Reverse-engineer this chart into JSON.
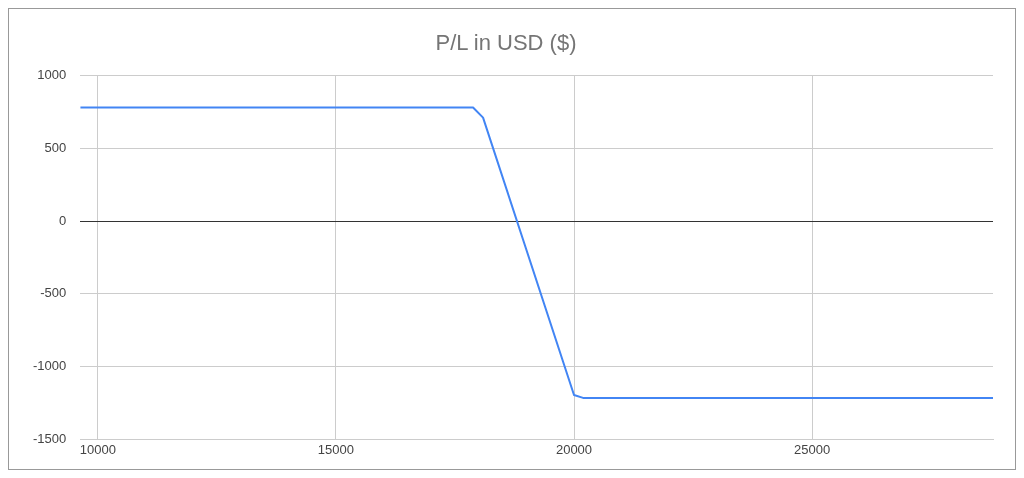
{
  "chart_data": {
    "type": "line",
    "title": "P/L in USD ($)",
    "x": [
      9630,
      17880,
      18090,
      20000,
      20190,
      28800
    ],
    "series": [
      {
        "color": "#4285f4",
        "values": [
          780,
          780,
          710,
          -1195,
          -1215,
          -1215
        ]
      }
    ],
    "xlim": [
      9630,
      28800
    ],
    "xticks": [
      10000,
      15000,
      20000,
      25000
    ],
    "ylim": [
      -1500,
      1000
    ],
    "yticks": [
      -1500,
      -1000,
      -500,
      0,
      500,
      1000
    ],
    "grid": true,
    "legend": false,
    "marker": "none",
    "line_style": "solid"
  }
}
